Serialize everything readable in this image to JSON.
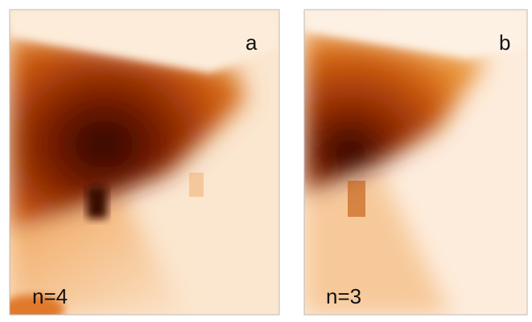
{
  "panels": [
    {
      "label": "a",
      "caption": "n=4"
    },
    {
      "label": "b",
      "caption": "n=3"
    }
  ]
}
